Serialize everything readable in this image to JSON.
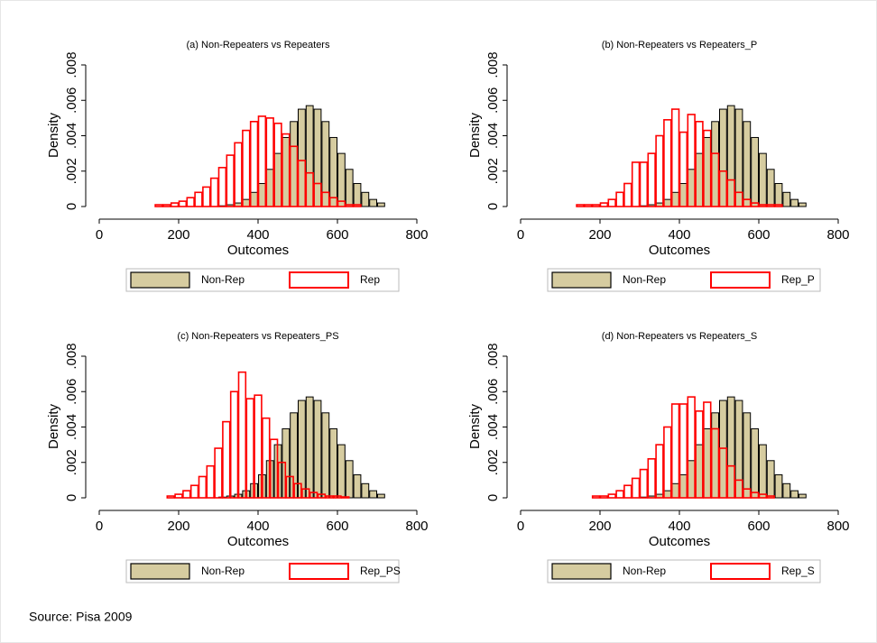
{
  "chart_data": [
    {
      "type": "histogram",
      "title": "(a) Non-Repeaters vs Repeaters",
      "x_label": "Outcomes",
      "y_label": "Density",
      "xlim": [
        0,
        800
      ],
      "xticks": [
        0,
        200,
        400,
        600,
        800
      ],
      "ylim": [
        0,
        0.008
      ],
      "yticks": [
        0,
        {
          "value": 0.002,
          "label": ".002"
        },
        {
          "value": 0.004,
          "label": ".004"
        },
        {
          "value": 0.006,
          "label": ".006"
        },
        {
          "value": 0.008,
          "label": ".008"
        }
      ],
      "series": [
        {
          "name": "Non-Rep",
          "color": "#d6cca0",
          "style": "filled",
          "bins": [
            300,
            320,
            340,
            360,
            380,
            400,
            420,
            440,
            460,
            480,
            500,
            520,
            540,
            560,
            580,
            600,
            620,
            640,
            660,
            680,
            700,
            720
          ],
          "values": [
            4e-05,
            0.0001,
            0.0002,
            0.0004,
            0.0008,
            0.0013,
            0.0021,
            0.003,
            0.0039,
            0.0048,
            0.0055,
            0.0057,
            0.0055,
            0.0048,
            0.0039,
            0.003,
            0.0021,
            0.0013,
            0.0008,
            0.0004,
            0.0002
          ]
        },
        {
          "name": "Rep",
          "color": "#ff0000",
          "style": "outline",
          "bins": [
            140,
            160,
            180,
            200,
            220,
            240,
            260,
            280,
            300,
            320,
            340,
            360,
            380,
            400,
            420,
            440,
            460,
            480,
            500,
            520,
            540,
            560,
            580,
            600,
            620,
            640,
            660
          ],
          "values": [
            0.0001,
            0.0001,
            0.0002,
            0.0003,
            0.0005,
            0.0008,
            0.0011,
            0.0016,
            0.0022,
            0.0029,
            0.0036,
            0.0043,
            0.0048,
            0.0051,
            0.005,
            0.0047,
            0.0041,
            0.0034,
            0.0026,
            0.0019,
            0.0013,
            0.0008,
            0.0005,
            0.0003,
            0.0001,
            0.0001
          ]
        }
      ]
    },
    {
      "type": "histogram",
      "title": "(b) Non-Repeaters vs Repeaters_P",
      "x_label": "Outcomes",
      "y_label": "Density",
      "xlim": [
        0,
        800
      ],
      "xticks": [
        0,
        200,
        400,
        600,
        800
      ],
      "ylim": [
        0,
        0.008
      ],
      "yticks": [
        0,
        {
          "value": 0.002,
          "label": ".002"
        },
        {
          "value": 0.004,
          "label": ".004"
        },
        {
          "value": 0.006,
          "label": ".006"
        },
        {
          "value": 0.008,
          "label": ".008"
        }
      ],
      "series": [
        {
          "name": "Non-Rep",
          "color": "#d6cca0",
          "style": "filled",
          "bins": [
            300,
            320,
            340,
            360,
            380,
            400,
            420,
            440,
            460,
            480,
            500,
            520,
            540,
            560,
            580,
            600,
            620,
            640,
            660,
            680,
            700,
            720
          ],
          "values": [
            4e-05,
            0.0001,
            0.0002,
            0.0004,
            0.0008,
            0.0013,
            0.0021,
            0.003,
            0.0039,
            0.0048,
            0.0055,
            0.0057,
            0.0055,
            0.0048,
            0.0039,
            0.003,
            0.0021,
            0.0013,
            0.0008,
            0.0004,
            0.0002
          ]
        },
        {
          "name": "Rep_P",
          "color": "#ff0000",
          "style": "outline",
          "bins": [
            140,
            160,
            180,
            200,
            220,
            240,
            260,
            280,
            300,
            320,
            340,
            360,
            380,
            400,
            420,
            440,
            460,
            480,
            500,
            520,
            540,
            560,
            580,
            600,
            620,
            640,
            660
          ],
          "values": [
            0.0001,
            0.0001,
            0.0001,
            0.0002,
            0.0004,
            0.0008,
            0.0013,
            0.0025,
            0.0025,
            0.003,
            0.004,
            0.0049,
            0.0055,
            0.0042,
            0.0052,
            0.0048,
            0.0043,
            0.003,
            0.002,
            0.0015,
            0.0008,
            0.0004,
            0.0002,
            0.0001,
            0.0001,
            0.0001
          ]
        }
      ]
    },
    {
      "type": "histogram",
      "title": "(c) Non-Repeaters vs Repeaters_PS",
      "x_label": "Outcomes",
      "y_label": "Density",
      "xlim": [
        0,
        800
      ],
      "xticks": [
        0,
        200,
        400,
        600,
        800
      ],
      "ylim": [
        0,
        0.008
      ],
      "yticks": [
        0,
        {
          "value": 0.002,
          "label": ".002"
        },
        {
          "value": 0.004,
          "label": ".004"
        },
        {
          "value": 0.006,
          "label": ".006"
        },
        {
          "value": 0.008,
          "label": ".008"
        }
      ],
      "series": [
        {
          "name": "Non-Rep",
          "color": "#d6cca0",
          "style": "filled",
          "bins": [
            300,
            320,
            340,
            360,
            380,
            400,
            420,
            440,
            460,
            480,
            500,
            520,
            540,
            560,
            580,
            600,
            620,
            640,
            660,
            680,
            700,
            720
          ],
          "values": [
            4e-05,
            0.0001,
            0.0002,
            0.0004,
            0.0008,
            0.0013,
            0.0021,
            0.003,
            0.0039,
            0.0048,
            0.0055,
            0.0057,
            0.0055,
            0.0048,
            0.0039,
            0.003,
            0.0021,
            0.0013,
            0.0008,
            0.0004,
            0.0002
          ]
        },
        {
          "name": "Rep_PS",
          "color": "#ff0000",
          "style": "outline",
          "bins": [
            170,
            190,
            210,
            230,
            250,
            270,
            290,
            310,
            330,
            350,
            370,
            390,
            410,
            430,
            450,
            470,
            490,
            510,
            530,
            550,
            570,
            590,
            610,
            630
          ],
          "values": [
            0.0001,
            0.0002,
            0.0004,
            0.0007,
            0.0012,
            0.0018,
            0.0028,
            0.0043,
            0.006,
            0.0071,
            0.0056,
            0.0058,
            0.0045,
            0.0033,
            0.002,
            0.0012,
            0.0008,
            0.0005,
            0.0003,
            0.0002,
            0.0001,
            0.0001,
            5e-05
          ]
        }
      ]
    },
    {
      "type": "histogram",
      "title": "(d) Non-Repeaters vs Repeaters_S",
      "x_label": "Outcomes",
      "y_label": "Density",
      "xlim": [
        0,
        800
      ],
      "xticks": [
        0,
        200,
        400,
        600,
        800
      ],
      "ylim": [
        0,
        0.008
      ],
      "yticks": [
        0,
        {
          "value": 0.002,
          "label": ".002"
        },
        {
          "value": 0.004,
          "label": ".004"
        },
        {
          "value": 0.006,
          "label": ".006"
        },
        {
          "value": 0.008,
          "label": ".008"
        }
      ],
      "series": [
        {
          "name": "Non-Rep",
          "color": "#d6cca0",
          "style": "filled",
          "bins": [
            300,
            320,
            340,
            360,
            380,
            400,
            420,
            440,
            460,
            480,
            500,
            520,
            540,
            560,
            580,
            600,
            620,
            640,
            660,
            680,
            700,
            720
          ],
          "values": [
            4e-05,
            0.0001,
            0.0002,
            0.0004,
            0.0008,
            0.0013,
            0.0021,
            0.003,
            0.0039,
            0.0048,
            0.0055,
            0.0057,
            0.0055,
            0.0048,
            0.0039,
            0.003,
            0.0021,
            0.0013,
            0.0008,
            0.0004,
            0.0002
          ]
        },
        {
          "name": "Rep_S",
          "color": "#ff0000",
          "style": "outline",
          "bins": [
            180,
            200,
            220,
            240,
            260,
            280,
            300,
            320,
            340,
            360,
            380,
            400,
            420,
            440,
            460,
            480,
            500,
            520,
            540,
            560,
            580,
            600,
            620,
            640
          ],
          "values": [
            0.0001,
            0.0001,
            0.0002,
            0.0004,
            0.0007,
            0.0011,
            0.0016,
            0.0022,
            0.003,
            0.004,
            0.0053,
            0.0053,
            0.0057,
            0.0049,
            0.0054,
            0.0039,
            0.0028,
            0.0018,
            0.001,
            0.0005,
            0.0003,
            0.0002,
            0.0001
          ]
        }
      ]
    }
  ],
  "note": "Source: Pisa 2009"
}
